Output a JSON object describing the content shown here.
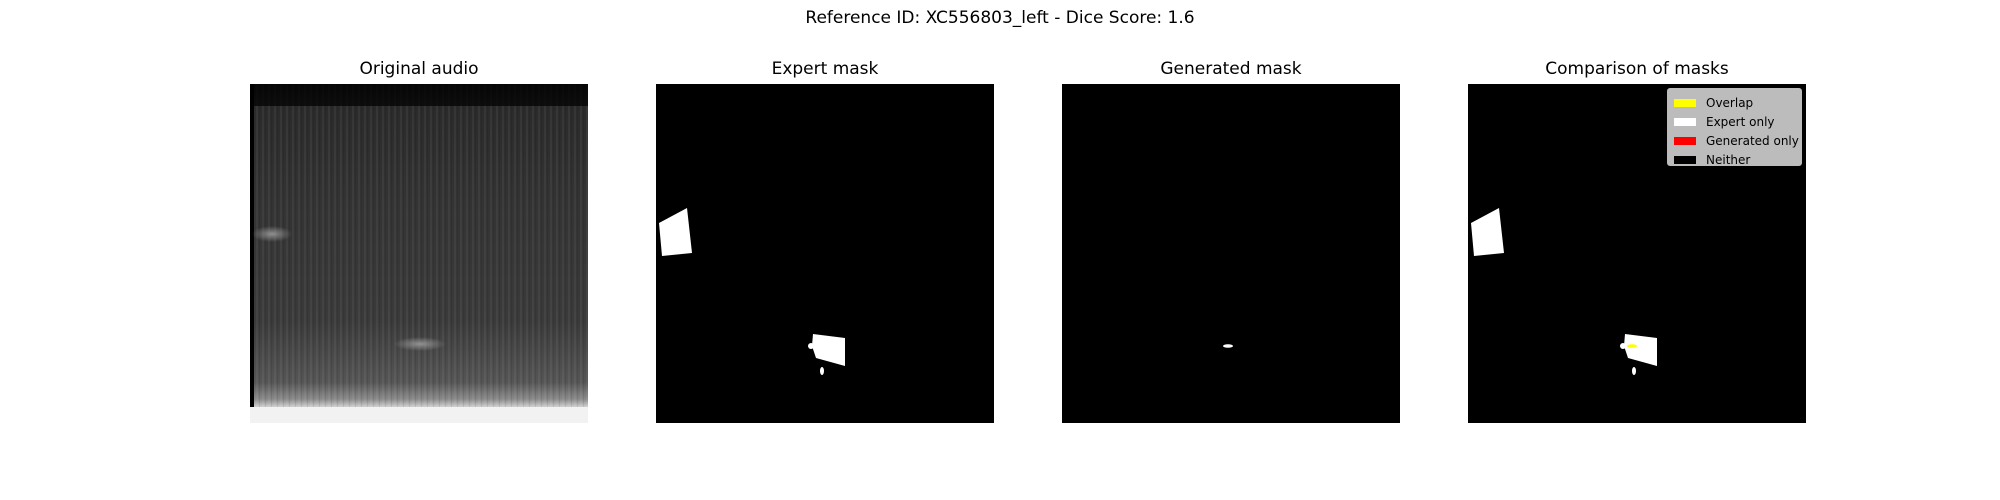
{
  "figure": {
    "title": "Reference ID: XC556803_left - Dice Score: 1.6"
  },
  "panels": [
    {
      "title": "Original audio"
    },
    {
      "title": "Expert mask"
    },
    {
      "title": "Generated mask"
    },
    {
      "title": "Comparison of masks"
    }
  ],
  "legend": {
    "items": [
      {
        "label": "Overlap",
        "color": "#ffff00"
      },
      {
        "label": "Expert only",
        "color": "#ffffff"
      },
      {
        "label": "Generated only",
        "color": "#ff0000"
      },
      {
        "label": "Neither",
        "color": "#000000"
      }
    ]
  },
  "colors": {
    "mask_fg": "#ffffff",
    "mask_bg": "#000000",
    "overlap": "#ffff00"
  }
}
